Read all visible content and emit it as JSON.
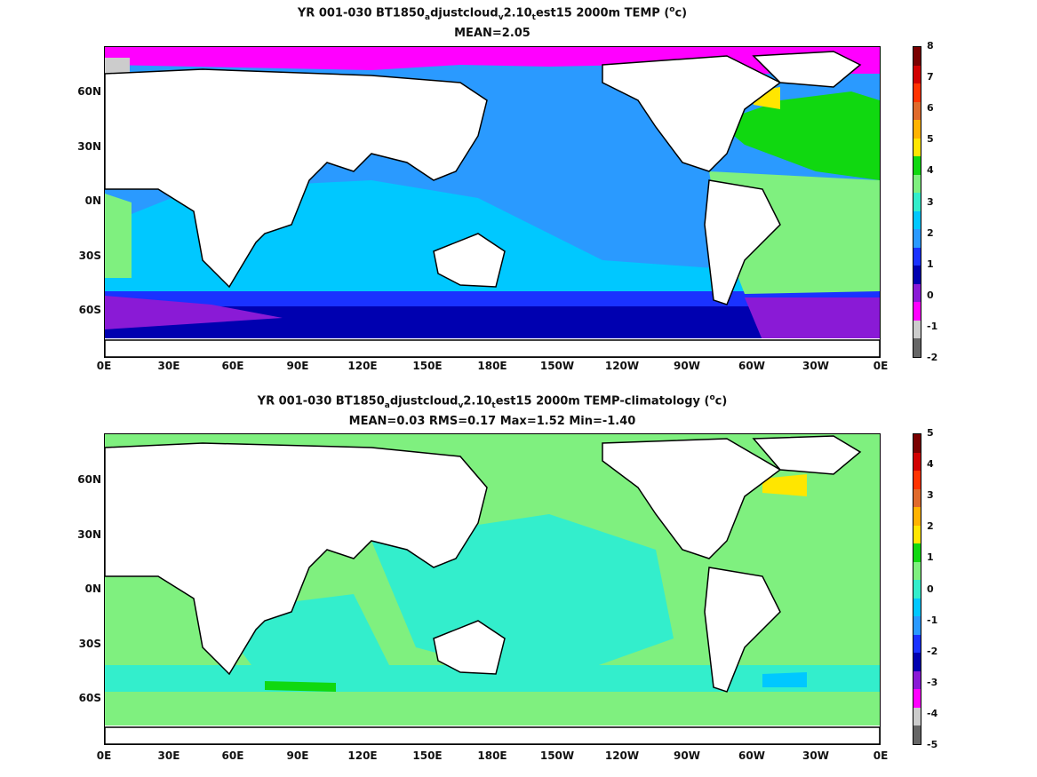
{
  "panels": [
    {
      "title_parts": [
        "YR 001-030 BT1850",
        "a",
        "djustcloud",
        "v",
        "2.10",
        "t",
        "est15 2000m TEMP (",
        "o",
        "c)"
      ],
      "subtitle": "MEAN=2.05",
      "colorbar": {
        "labels": [
          "8",
          "7",
          "6",
          "5",
          "4",
          "3",
          "2",
          "1",
          "0",
          "-1",
          "-2"
        ],
        "colors": [
          "#7a0000",
          "#d10000",
          "#ff3300",
          "#e06a2b",
          "#ffb300",
          "#ffe600",
          "#10d810",
          "#7ff07f",
          "#33eecc",
          "#00c8ff",
          "#2a9aff",
          "#1a32ff",
          "#0000b0",
          "#8a1ad6",
          "#ff00ff",
          "#cccccc",
          "#666666"
        ]
      },
      "mean": 2.05
    },
    {
      "title_parts": [
        "YR 001-030 BT1850",
        "a",
        "djustcloud",
        "v",
        "2.10",
        "t",
        "est15 2000m TEMP-climatology (",
        "o",
        "c)"
      ],
      "subtitle": "MEAN=0.03   RMS=0.17   Max=1.52   Min=-1.40",
      "colorbar": {
        "labels": [
          "5",
          "4",
          "3",
          "2",
          "1",
          "0",
          "-1",
          "-2",
          "-3",
          "-4",
          "-5"
        ],
        "colors": [
          "#7a0000",
          "#d10000",
          "#ff3300",
          "#e06a2b",
          "#ffb300",
          "#ffe600",
          "#10d810",
          "#7ff07f",
          "#33eecc",
          "#00c8ff",
          "#2a9aff",
          "#1a32ff",
          "#0000b0",
          "#8a1ad6",
          "#ff00ff",
          "#cccccc",
          "#666666"
        ]
      },
      "stats": {
        "mean": 0.03,
        "rms": 0.17,
        "max": 1.52,
        "min": -1.4
      }
    }
  ],
  "axis": {
    "y_labels": [
      "60N",
      "30N",
      "0N",
      "30S",
      "60S"
    ],
    "x_labels": [
      "0E",
      "30E",
      "60E",
      "90E",
      "120E",
      "150E",
      "180E",
      "150W",
      "120W",
      "90W",
      "60W",
      "30W",
      "0E"
    ]
  }
}
